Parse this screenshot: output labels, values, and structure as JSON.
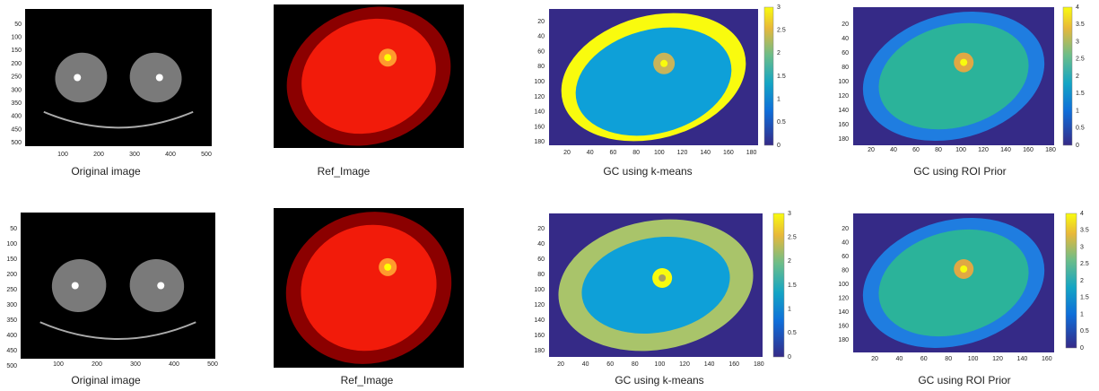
{
  "panels": [
    {
      "caption": "Original image",
      "yticks": [
        50,
        100,
        150,
        200,
        250,
        300,
        350,
        400,
        450,
        500
      ],
      "xticks": [
        100,
        200,
        300,
        400,
        500
      ]
    },
    {
      "caption": "Ref_Image"
    },
    {
      "caption": "GC using k-means",
      "yticks": [
        20,
        40,
        60,
        80,
        100,
        120,
        140,
        160,
        180
      ],
      "xticks": [
        20,
        40,
        60,
        80,
        100,
        120,
        140,
        160,
        180
      ],
      "cbticks": [
        0,
        0.5,
        1,
        1.5,
        2,
        2.5,
        3
      ]
    },
    {
      "caption": "GC using ROI Prior",
      "yticks": [
        20,
        40,
        60,
        80,
        100,
        120,
        140,
        160,
        180
      ],
      "xticks": [
        20,
        40,
        60,
        80,
        100,
        120,
        140,
        160,
        180
      ],
      "cbticks": [
        0,
        0.5,
        1,
        1.5,
        2,
        2.5,
        3,
        3.5,
        4
      ]
    },
    {
      "caption": "Original image",
      "yticks": [
        50,
        100,
        150,
        200,
        250,
        300,
        350,
        400,
        450,
        500
      ],
      "xticks": [
        100,
        200,
        300,
        400,
        500
      ]
    },
    {
      "caption": "Ref_Image"
    },
    {
      "caption": "GC using k-means",
      "yticks": [
        20,
        40,
        60,
        80,
        100,
        120,
        140,
        160,
        180
      ],
      "xticks": [
        20,
        40,
        60,
        80,
        100,
        120,
        140,
        160,
        180
      ],
      "cbticks": [
        0,
        0.5,
        1,
        1.5,
        2,
        2.5,
        3
      ]
    },
    {
      "caption": "GC using ROI Prior",
      "yticks": [
        20,
        40,
        60,
        80,
        100,
        120,
        140,
        160,
        180
      ],
      "xticks": [
        20,
        40,
        60,
        80,
        100,
        120,
        140,
        160
      ],
      "cbticks": [
        0,
        0.5,
        1,
        1.5,
        2,
        2.5,
        3,
        3.5,
        4
      ]
    }
  ]
}
